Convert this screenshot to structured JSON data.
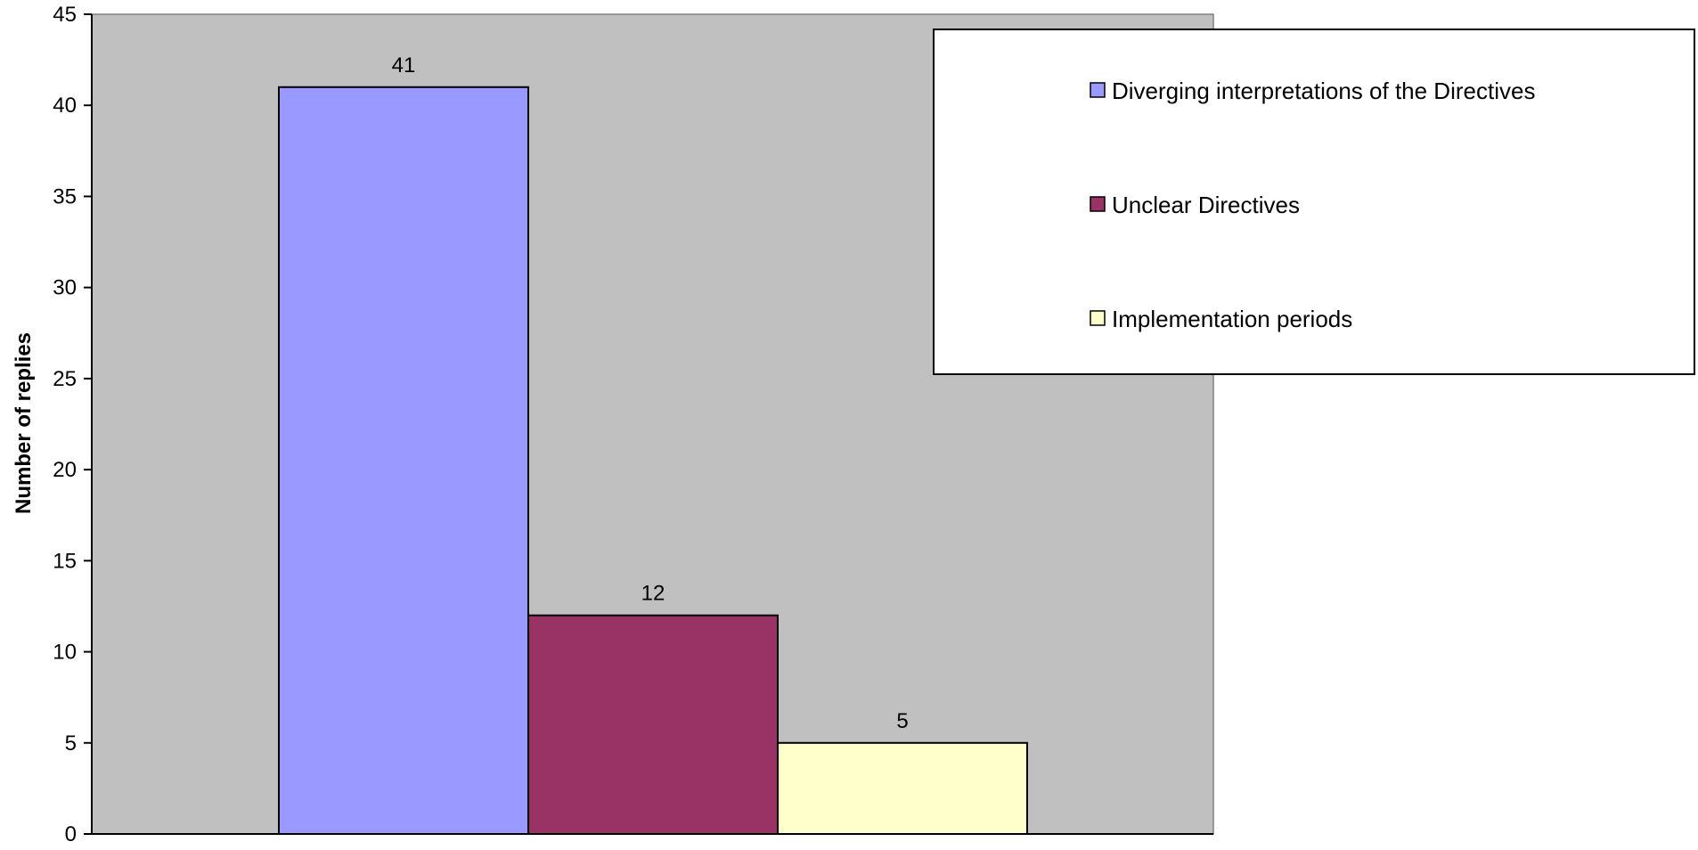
{
  "chart_data": {
    "type": "bar",
    "title": "",
    "xlabel": "",
    "ylabel": "Number of replies",
    "ylim": [
      0,
      45
    ],
    "ytick_step": 5,
    "grid": false,
    "legend_position": "top-right",
    "series": [
      {
        "name": "Diverging interpretations of the Directives",
        "values": [
          41
        ],
        "color": "#9999ff"
      },
      {
        "name": "Unclear Directives",
        "values": [
          12
        ],
        "color": "#993366"
      },
      {
        "name": "Implementation periods",
        "values": [
          5
        ],
        "color": "#ffffcc"
      }
    ],
    "plot_background": "#c0c0c0"
  }
}
